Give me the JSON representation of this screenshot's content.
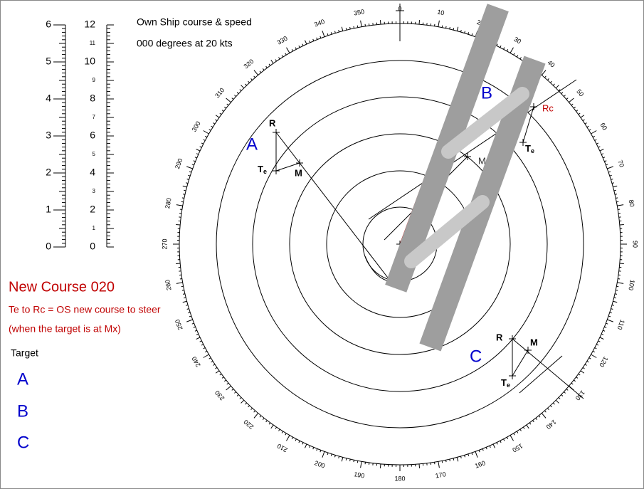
{
  "scale": {
    "left": [
      0,
      1,
      2,
      3,
      4,
      5,
      6
    ],
    "right": [
      0,
      1,
      2,
      3,
      4,
      5,
      6,
      7,
      8,
      9,
      10,
      11,
      12
    ]
  },
  "own_ship": {
    "title": "Own Ship course & speed",
    "value": "000 degrees at 20 kts"
  },
  "new_course": {
    "title": "New Course 020",
    "rule": "Te  to  Rc = OS new course to steer",
    "note": "(when the target is at Mx)"
  },
  "targets": {
    "heading": "Target",
    "items": [
      "A",
      "B",
      "C"
    ]
  },
  "compass": {
    "bearings": [
      0,
      10,
      20,
      30,
      40,
      50,
      60,
      70,
      80,
      90,
      100,
      110,
      120,
      130,
      140,
      150,
      160,
      170,
      180,
      190,
      200,
      210,
      220,
      230,
      240,
      250,
      260,
      270,
      280,
      290,
      300,
      310,
      320,
      330,
      340,
      350
    ]
  },
  "plot": {
    "A": {
      "label": "A",
      "R": "R",
      "M": "M",
      "Te": {
        "main": "T",
        "sub": "e"
      }
    },
    "B": {
      "label": "B",
      "M": "M",
      "Rc": "Rc",
      "Te": {
        "main": "T",
        "sub": "e"
      }
    },
    "C": {
      "label": "C",
      "R": "R",
      "M": "M",
      "Te": {
        "main": "T",
        "sub": "e"
      }
    }
  }
}
